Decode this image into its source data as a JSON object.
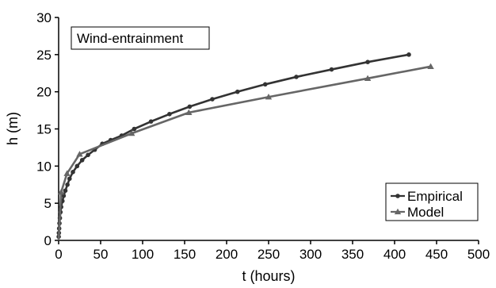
{
  "chart_data": {
    "type": "line",
    "title": "",
    "annotation": "Wind-entrainment",
    "xlabel": "t (hours)",
    "ylabel": "h (m)",
    "xlim": [
      0,
      500
    ],
    "ylim": [
      0,
      30
    ],
    "xticks": [
      0,
      50,
      100,
      150,
      200,
      250,
      300,
      350,
      400,
      450,
      500
    ],
    "yticks": [
      0,
      5,
      10,
      15,
      20,
      25,
      30
    ],
    "grid": false,
    "legend_position": "bottom-right",
    "series": [
      {
        "name": "Empirical",
        "color": "#333333",
        "marker": "circle",
        "points": [
          [
            0.1,
            0.5
          ],
          [
            0.3,
            1.0
          ],
          [
            0.6,
            1.6
          ],
          [
            1,
            2.3
          ],
          [
            1.5,
            3.0
          ],
          [
            2.2,
            3.8
          ],
          [
            3,
            4.5
          ],
          [
            4.5,
            5.3
          ],
          [
            6,
            6.0
          ],
          [
            8,
            6.7
          ],
          [
            10.5,
            7.5
          ],
          [
            13,
            8.3
          ],
          [
            17,
            9.2
          ],
          [
            22,
            10.0
          ],
          [
            28,
            10.8
          ],
          [
            35,
            11.5
          ],
          [
            43,
            12.2
          ],
          [
            52,
            13.0
          ],
          [
            62,
            13.5
          ],
          [
            75,
            14.1
          ],
          [
            90,
            15.0
          ],
          [
            110,
            16.0
          ],
          [
            132,
            17.0
          ],
          [
            156,
            18.0
          ],
          [
            183,
            19.0
          ],
          [
            213,
            20.0
          ],
          [
            246,
            21.0
          ],
          [
            283,
            22.0
          ],
          [
            325,
            23.0
          ],
          [
            368,
            24.0
          ],
          [
            417,
            25.0
          ]
        ]
      },
      {
        "name": "Model",
        "color": "#666666",
        "marker": "triangle",
        "points": [
          [
            0,
            0
          ],
          [
            3,
            6.5
          ],
          [
            10,
            9.0
          ],
          [
            25,
            11.6
          ],
          [
            87,
            14.4
          ],
          [
            155,
            17.2
          ],
          [
            250,
            19.3
          ],
          [
            368,
            21.8
          ],
          [
            443,
            23.4
          ]
        ]
      }
    ]
  }
}
